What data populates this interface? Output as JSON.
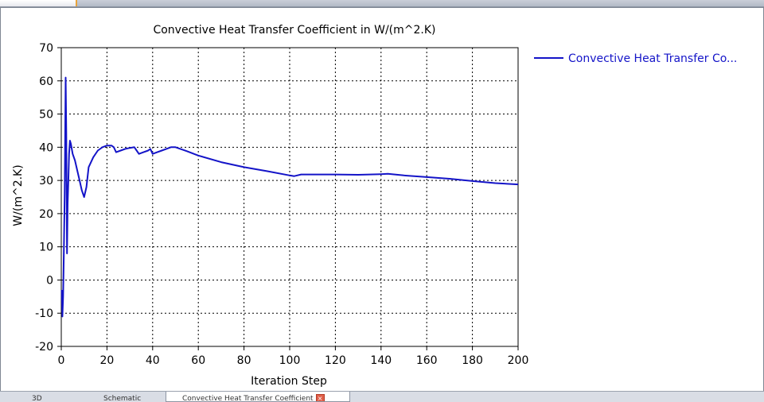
{
  "tabs": [
    {
      "label": "3D",
      "active": false
    },
    {
      "label": "Schematic",
      "active": false
    },
    {
      "label": "Convective Heat Transfer Coefficient",
      "active": true
    }
  ],
  "colors": {
    "series": "#1414c8",
    "grid": "#000000",
    "tab_close": "#e0604a"
  },
  "chart_data": {
    "type": "line",
    "title": "Convective Heat Transfer Coefficient in W/(m^2.K)",
    "xlabel": "Iteration Step",
    "ylabel": "W/(m^2.K)",
    "xlim": [
      0,
      200
    ],
    "ylim": [
      -20,
      70
    ],
    "xticks": [
      0,
      20,
      40,
      60,
      80,
      100,
      120,
      140,
      160,
      180,
      200
    ],
    "yticks": [
      -20,
      -10,
      0,
      10,
      20,
      30,
      40,
      50,
      60,
      70
    ],
    "grid": true,
    "legend_position": "right",
    "series": [
      {
        "name": "Convective Heat Transfer Co...",
        "color": "#1414c8",
        "x": [
          0.2,
          0.5,
          0.8,
          1.1,
          1.5,
          1.9,
          2.2,
          2.5,
          2.8,
          3.1,
          3.4,
          3.8,
          4.2,
          5,
          6,
          7,
          8,
          9,
          10,
          11,
          12,
          14,
          16,
          18,
          20,
          22,
          23,
          24,
          26,
          28,
          30,
          32,
          33,
          34,
          36,
          38,
          39,
          40,
          42,
          44,
          46,
          48,
          50,
          55,
          60,
          70,
          80,
          90,
          100,
          102,
          105,
          110,
          120,
          130,
          140,
          143,
          150,
          160,
          170,
          180,
          190,
          200
        ],
        "y": [
          -3,
          -11,
          -5,
          8,
          26,
          61,
          44,
          8,
          23,
          30,
          38,
          42,
          41,
          38,
          36,
          33,
          30,
          27,
          25,
          28,
          34,
          37,
          39,
          40,
          40.5,
          40.5,
          40,
          38.5,
          39,
          39.5,
          39.8,
          40,
          39,
          38,
          38.5,
          39,
          39.5,
          38,
          38.5,
          39,
          39.5,
          40,
          40,
          38.8,
          37.5,
          35.5,
          34,
          32.8,
          31.5,
          31.3,
          31.8,
          31.8,
          31.8,
          31.7,
          31.9,
          32,
          31.5,
          31,
          30.5,
          29.8,
          29.2,
          28.8
        ]
      }
    ]
  }
}
